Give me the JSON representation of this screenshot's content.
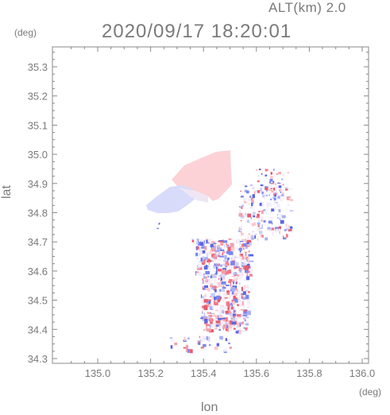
{
  "header": {
    "altitude": "ALT(km) 2.0",
    "timestamp": "2020/09/17 18:20:01"
  },
  "axes": {
    "y_unit": "(deg)",
    "x_unit": "(deg)",
    "y_label": "lat",
    "x_label": "lon",
    "y_ticks": [
      "35.3",
      "35.2",
      "35.1",
      "35.0",
      "34.9",
      "34.8",
      "34.7",
      "34.6",
      "34.5",
      "34.4",
      "34.3"
    ],
    "x_ticks": [
      "135.0",
      "135.2",
      "135.4",
      "135.6",
      "135.8",
      "136.0"
    ]
  },
  "colors": {
    "frame": "#888888",
    "tick": "#888888",
    "positive": "#f05a6a",
    "negative": "#5a6af0",
    "text": "#7a7a7a"
  }
}
